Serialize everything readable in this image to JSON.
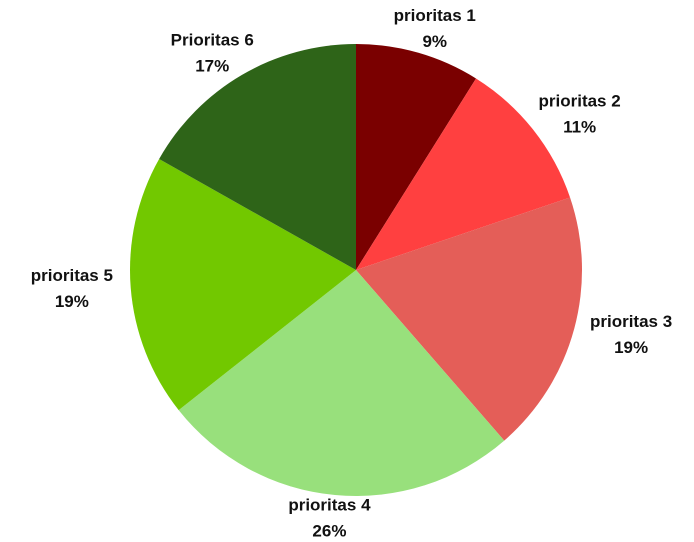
{
  "chart_data": {
    "type": "pie",
    "categories": [
      "prioritas 1",
      "prioritas 2",
      "prioritas 3",
      "prioritas 4",
      "prioritas 5",
      "Prioritas 6"
    ],
    "values": [
      9,
      11,
      19,
      26,
      19,
      17
    ],
    "value_labels": [
      "9%",
      "11%",
      "19%",
      "26%",
      "19%",
      "17%"
    ],
    "colors": [
      "#7a0000",
      "#ff4040",
      "#e45e58",
      "#98e07c",
      "#72c800",
      "#2e6418"
    ]
  }
}
